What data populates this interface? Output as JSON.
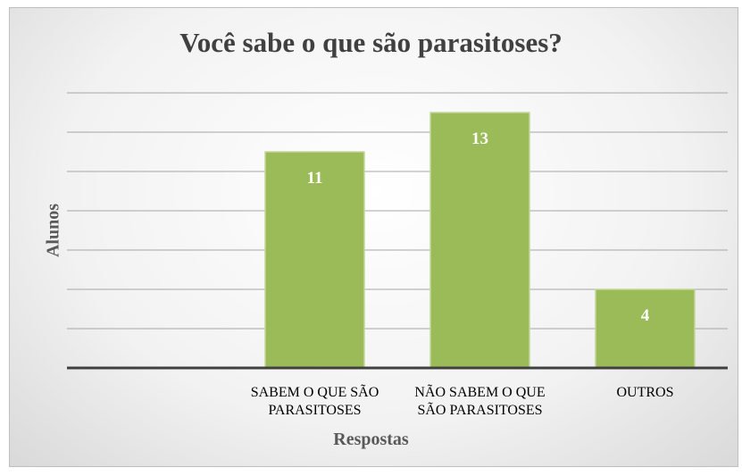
{
  "chart_data": {
    "type": "bar",
    "title": "Você sabe o que são parasitoses?",
    "x_label": "Respostas",
    "y_label": "Alunos",
    "categories": [
      null,
      "SABEM O QUE SÃO\nPARASITOSES",
      "NÃO SABEM O QUE\nSÃO PARASITOSES",
      "OUTROS"
    ],
    "values": [
      null,
      11,
      13,
      4
    ],
    "color": "#9bbb59",
    "ylim": [
      0,
      14
    ],
    "yticks": [
      0,
      2,
      4,
      6,
      8,
      10,
      12,
      14
    ],
    "grid": true
  }
}
